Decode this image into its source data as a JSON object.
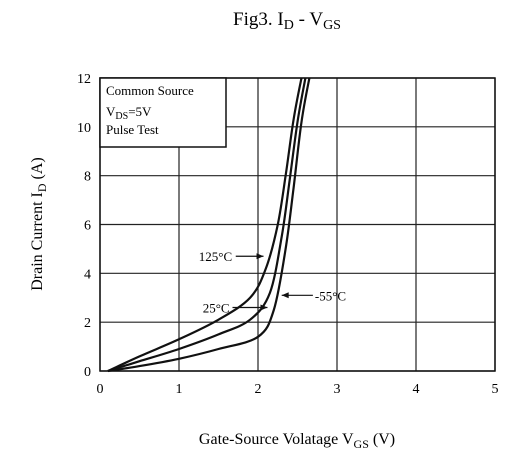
{
  "chart_data": {
    "type": "line",
    "title": "Fig3. I_D - V_GS",
    "title_parts": {
      "main": "Fig3. I",
      "sub1": "D",
      "mid": " - V",
      "sub2": "GS"
    },
    "xlabel": "Gate-Source Volatage V_GS (V)",
    "xlabel_parts": {
      "main": "Gate-Source Volatage  V",
      "sub": "GS",
      "unit": " (V)"
    },
    "ylabel": "Drain Current I_D (A)",
    "ylabel_parts": {
      "main": "Drain Current  I",
      "sub": "D",
      "unit": " (A)"
    },
    "xlim": [
      0,
      5
    ],
    "ylim": [
      0,
      12
    ],
    "xticks": [
      "0",
      "1",
      "2",
      "3",
      "4",
      "5"
    ],
    "yticks": [
      "0",
      "2",
      "4",
      "6",
      "8",
      "10",
      "12"
    ],
    "grid": true,
    "legend_box": {
      "line1": "Common Source",
      "line2_main": "V",
      "line2_sub": "DS",
      "line2_rest": "=5V",
      "line3": "Pulse Test"
    },
    "series": [
      {
        "name": "125°C",
        "x": [
          0.1,
          0.5,
          1.0,
          1.5,
          1.9,
          2.1,
          2.25,
          2.35,
          2.45,
          2.55
        ],
        "y": [
          0,
          0.6,
          1.3,
          2.1,
          3.0,
          4.2,
          6.0,
          8.0,
          10.3,
          12.0
        ]
      },
      {
        "name": "25°C",
        "x": [
          0.1,
          0.5,
          1.0,
          1.5,
          1.9,
          2.15,
          2.3,
          2.4,
          2.5,
          2.6
        ],
        "y": [
          0,
          0.4,
          0.9,
          1.5,
          2.1,
          3.2,
          5.5,
          7.8,
          10.2,
          12.0
        ]
      },
      {
        "name": "-55°C",
        "x": [
          0.1,
          0.5,
          1.0,
          1.5,
          2.0,
          2.2,
          2.35,
          2.45,
          2.55,
          2.65
        ],
        "y": [
          0,
          0.2,
          0.5,
          0.9,
          1.4,
          2.5,
          5.0,
          7.5,
          10.2,
          12.0
        ]
      }
    ],
    "annotations": [
      {
        "text_main": "125",
        "text_unit": "°C",
        "series": "125°C",
        "label_at": [
          1.25,
          4.7
        ],
        "points_to": [
          2.07,
          4.7
        ]
      },
      {
        "text_main": "25",
        "text_unit": "°C",
        "series": "25°C",
        "label_at": [
          1.3,
          2.6
        ],
        "points_to": [
          2.12,
          2.6
        ]
      },
      {
        "text_main": "-55",
        "text_unit": "°C",
        "series": "-55°C",
        "label_at": [
          2.72,
          3.1
        ],
        "points_to": [
          2.3,
          3.1
        ]
      }
    ]
  }
}
